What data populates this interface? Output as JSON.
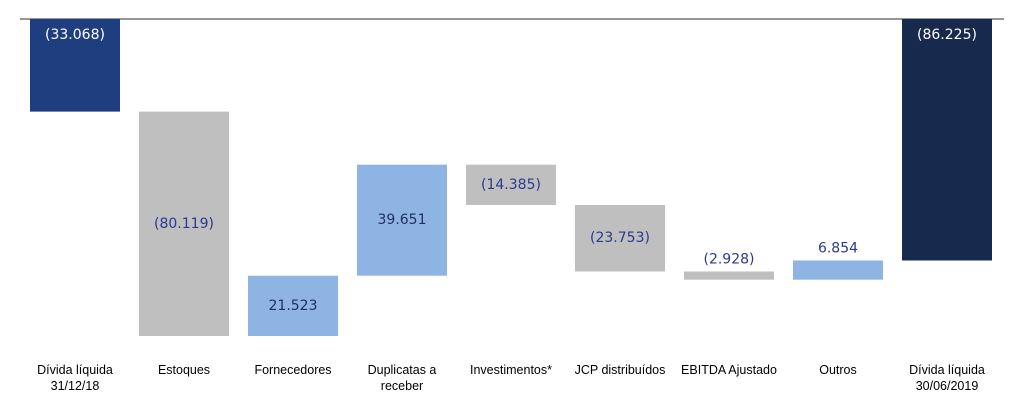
{
  "chart_data": {
    "type": "waterfall",
    "categories": [
      "Dívida líquida\n31/12/18",
      "Estoques",
      "Fornecedores",
      "Duplicatas a\nreceber",
      "Investimentos*",
      "JCP distribuídos",
      "EBITDA Ajustado",
      "Outros",
      "Dívida líquida\n30/06/2019"
    ],
    "values": [
      -33068,
      -80119,
      21523,
      39651,
      -14385,
      -23753,
      -2928,
      6854,
      -86225
    ],
    "value_labels": [
      "(33.068)",
      "(80.119)",
      "21.523",
      "39.651",
      "(14.385)",
      "(23.753)",
      "(2.928)",
      "6.854",
      "(86.225)"
    ],
    "measure": [
      "absolute",
      "relative",
      "relative",
      "relative",
      "relative",
      "relative",
      "relative",
      "relative",
      "total"
    ],
    "colors": [
      "#1f3e80",
      "#bfbfbf",
      "#8eb4e3",
      "#8eb4e3",
      "#bfbfbf",
      "#bfbfbf",
      "#bfbfbf",
      "#8eb4e3",
      "#172a4e"
    ]
  }
}
